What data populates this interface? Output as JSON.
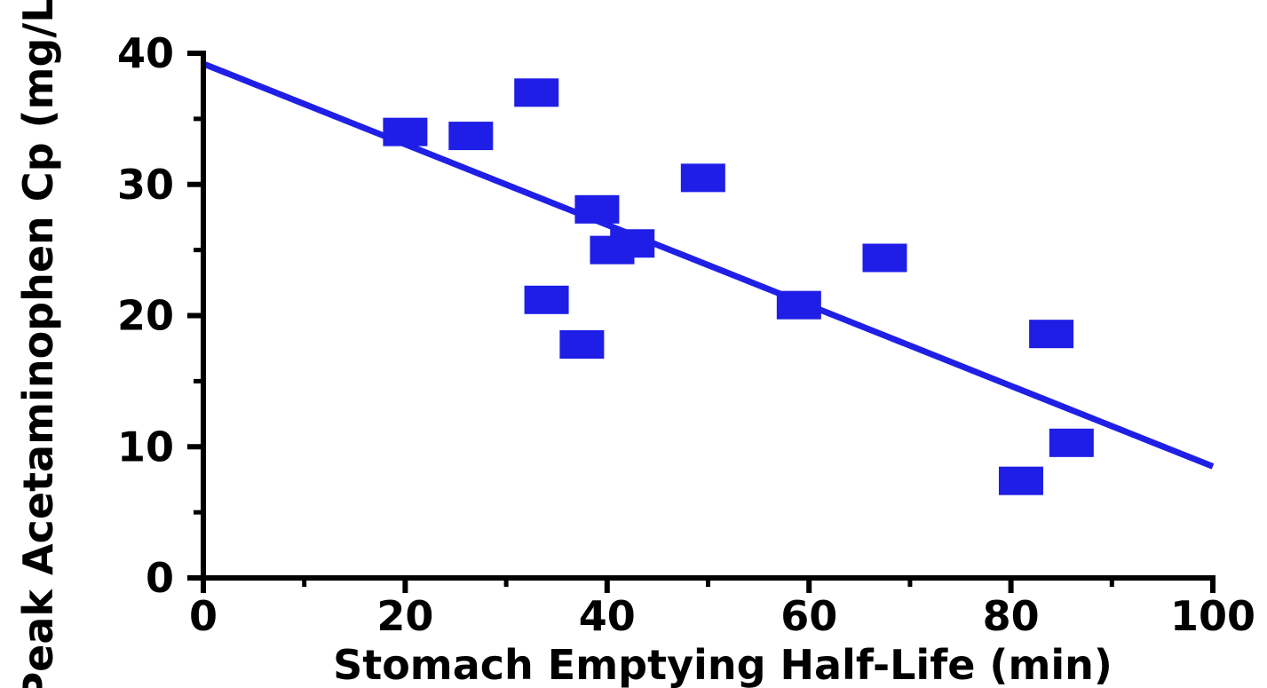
{
  "colors": {
    "marker": "#1e1ee6",
    "line": "#1f1fe6",
    "axis": "#000000"
  },
  "chart_data": {
    "type": "scatter",
    "xlabel": "Stomach Emptying Half-Life (min)",
    "ylabel": "Peak Acetaminophen Cp (mg/L)",
    "xlim": [
      0,
      100
    ],
    "ylim": [
      0,
      40
    ],
    "xticks": [
      0,
      20,
      40,
      60,
      80,
      100
    ],
    "xtick_labels": [
      "0",
      "20",
      "40",
      "60",
      "80",
      "100"
    ],
    "yticks": [
      0,
      10,
      20,
      30,
      40
    ],
    "ytick_labels": [
      "0",
      "10",
      "20",
      "30",
      "40"
    ],
    "x_minor_ticks": [
      10,
      30,
      50,
      70,
      90
    ],
    "y_minor_ticks": [
      5,
      15,
      25,
      35
    ],
    "grid": false,
    "marker": "square",
    "points": [
      {
        "x": 20,
        "y": 34
      },
      {
        "x": 26.5,
        "y": 33.7
      },
      {
        "x": 33,
        "y": 37
      },
      {
        "x": 34,
        "y": 21.2
      },
      {
        "x": 37.5,
        "y": 17.8
      },
      {
        "x": 39,
        "y": 28.1
      },
      {
        "x": 40.5,
        "y": 25
      },
      {
        "x": 42.5,
        "y": 25.5
      },
      {
        "x": 49.5,
        "y": 30.5
      },
      {
        "x": 59,
        "y": 20.8
      },
      {
        "x": 67.5,
        "y": 24.4
      },
      {
        "x": 81,
        "y": 7.4
      },
      {
        "x": 84,
        "y": 18.6
      },
      {
        "x": 86,
        "y": 10.3
      }
    ],
    "fit_line": {
      "x": [
        0,
        100
      ],
      "y": [
        39.2,
        8.5
      ]
    }
  }
}
